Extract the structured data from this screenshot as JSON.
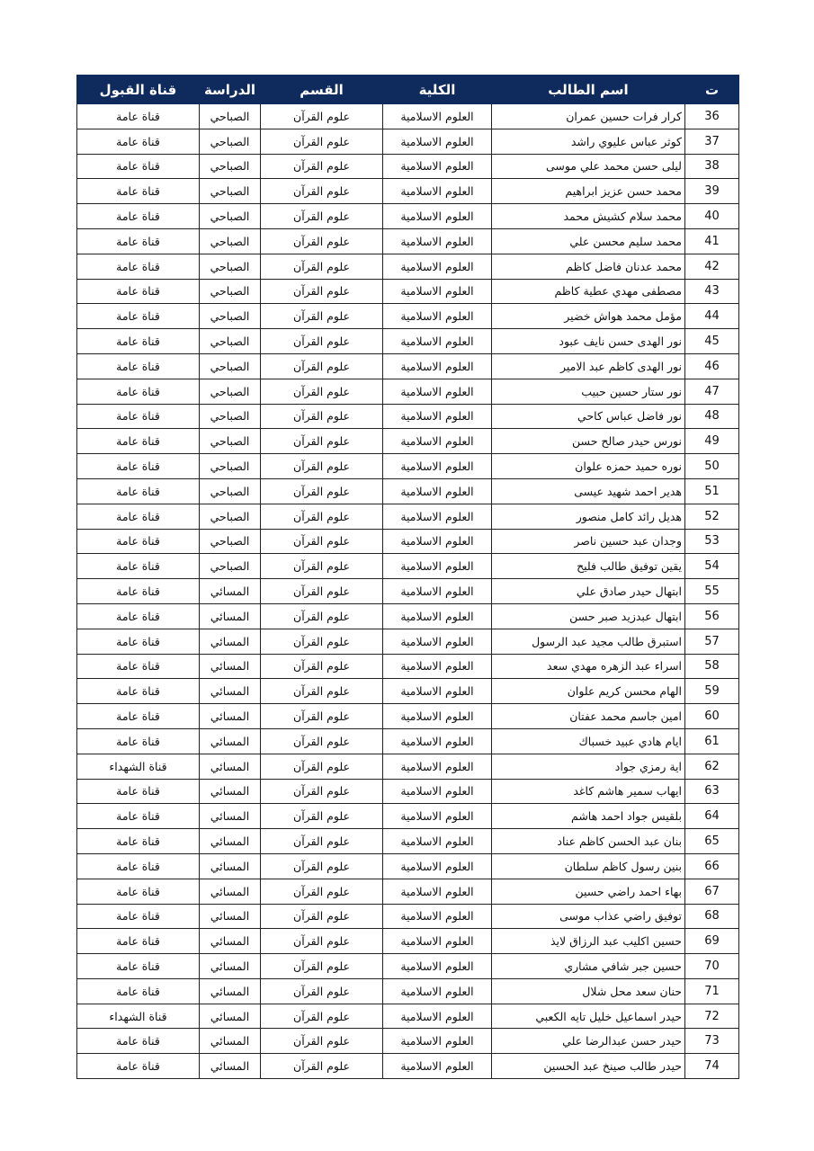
{
  "table": {
    "headers": {
      "num": "ت",
      "name": "اسم الطالب",
      "college": "الكلية",
      "dept": "القسم",
      "study": "الدراسة",
      "channel": "قناة القبول"
    },
    "rows": [
      {
        "num": "36",
        "name": "كرار فرات حسين عمران",
        "college": "العلوم الاسلامية",
        "dept": "علوم القرآن",
        "study": "الصباحي",
        "channel": "قناة عامة"
      },
      {
        "num": "37",
        "name": "كوثر عباس عليوي راشد",
        "college": "العلوم الاسلامية",
        "dept": "علوم القرآن",
        "study": "الصباحي",
        "channel": "قناة عامة"
      },
      {
        "num": "38",
        "name": "ليلى حسن محمد علي موسى",
        "college": "العلوم الاسلامية",
        "dept": "علوم القرآن",
        "study": "الصباحي",
        "channel": "قناة عامة"
      },
      {
        "num": "39",
        "name": "محمد حسن عزيز ابراهيم",
        "college": "العلوم الاسلامية",
        "dept": "علوم القرآن",
        "study": "الصباحي",
        "channel": "قناة عامة"
      },
      {
        "num": "40",
        "name": "محمد سلام كشيش محمد",
        "college": "العلوم الاسلامية",
        "dept": "علوم القرآن",
        "study": "الصباحي",
        "channel": "قناة عامة"
      },
      {
        "num": "41",
        "name": "محمد سليم محسن علي",
        "college": "العلوم الاسلامية",
        "dept": "علوم القرآن",
        "study": "الصباحي",
        "channel": "قناة عامة"
      },
      {
        "num": "42",
        "name": "محمد عدنان فاضل كاظم",
        "college": "العلوم الاسلامية",
        "dept": "علوم القرآن",
        "study": "الصباحي",
        "channel": "قناة عامة"
      },
      {
        "num": "43",
        "name": "مصطفى مهدي عطية كاظم",
        "college": "العلوم الاسلامية",
        "dept": "علوم القرآن",
        "study": "الصباحي",
        "channel": "قناة عامة"
      },
      {
        "num": "44",
        "name": "مؤمل محمد هواش خضير",
        "college": "العلوم الاسلامية",
        "dept": "علوم القرآن",
        "study": "الصباحي",
        "channel": "قناة عامة"
      },
      {
        "num": "45",
        "name": "نور الهدى حسن نايف عبود",
        "college": "العلوم الاسلامية",
        "dept": "علوم القرآن",
        "study": "الصباحي",
        "channel": "قناة عامة"
      },
      {
        "num": "46",
        "name": "نور الهدى كاظم عبد الامير",
        "college": "العلوم الاسلامية",
        "dept": "علوم القرآن",
        "study": "الصباحي",
        "channel": "قناة عامة"
      },
      {
        "num": "47",
        "name": "نور ستار حسين حبيب",
        "college": "العلوم الاسلامية",
        "dept": "علوم القرآن",
        "study": "الصباحي",
        "channel": "قناة عامة"
      },
      {
        "num": "48",
        "name": "نور فاضل عباس كاحي",
        "college": "العلوم الاسلامية",
        "dept": "علوم القرآن",
        "study": "الصباحي",
        "channel": "قناة عامة"
      },
      {
        "num": "49",
        "name": "نورس حيدر صالح حسن",
        "college": "العلوم الاسلامية",
        "dept": "علوم القرآن",
        "study": "الصباحي",
        "channel": "قناة عامة"
      },
      {
        "num": "50",
        "name": "نوره حميد حمزه علوان",
        "college": "العلوم الاسلامية",
        "dept": "علوم القرآن",
        "study": "الصباحي",
        "channel": "قناة عامة"
      },
      {
        "num": "51",
        "name": "هدير احمد شهيد عيسى",
        "college": "العلوم الاسلامية",
        "dept": "علوم القرآن",
        "study": "الصباحي",
        "channel": "قناة عامة"
      },
      {
        "num": "52",
        "name": "هديل رائد كامل منصور",
        "college": "العلوم الاسلامية",
        "dept": "علوم القرآن",
        "study": "الصباحي",
        "channel": "قناة عامة"
      },
      {
        "num": "53",
        "name": "وجدان عبد حسين ناصر",
        "college": "العلوم الاسلامية",
        "dept": "علوم القرآن",
        "study": "الصباحي",
        "channel": "قناة عامة"
      },
      {
        "num": "54",
        "name": "يقين توفيق طالب فليح",
        "college": "العلوم الاسلامية",
        "dept": "علوم القرآن",
        "study": "الصباحي",
        "channel": "قناة عامة"
      },
      {
        "num": "55",
        "name": "ابتهال حيدر صادق علي",
        "college": "العلوم الاسلامية",
        "dept": "علوم القرآن",
        "study": "المسائي",
        "channel": "قناة عامة"
      },
      {
        "num": "56",
        "name": "ابتهال عبدزيد صبر حسن",
        "college": "العلوم الاسلامية",
        "dept": "علوم القرآن",
        "study": "المسائي",
        "channel": "قناة عامة"
      },
      {
        "num": "57",
        "name": "استبرق طالب مجيد عبد الرسول",
        "college": "العلوم الاسلامية",
        "dept": "علوم القرآن",
        "study": "المسائي",
        "channel": "قناة عامة"
      },
      {
        "num": "58",
        "name": "اسراء عبد الزهره مهدي سعد",
        "college": "العلوم الاسلامية",
        "dept": "علوم القرآن",
        "study": "المسائي",
        "channel": "قناة عامة"
      },
      {
        "num": "59",
        "name": "الهام محسن كريم علوان",
        "college": "العلوم الاسلامية",
        "dept": "علوم القرآن",
        "study": "المسائي",
        "channel": "قناة عامة"
      },
      {
        "num": "60",
        "name": "امين جاسم محمد عفتان",
        "college": "العلوم الاسلامية",
        "dept": "علوم القرآن",
        "study": "المسائي",
        "channel": "قناة عامة"
      },
      {
        "num": "61",
        "name": "ايام هادي عبيد خسباك",
        "college": "العلوم الاسلامية",
        "dept": "علوم القرآن",
        "study": "المسائي",
        "channel": "قناة عامة"
      },
      {
        "num": "62",
        "name": "اية رمزي جواد",
        "college": "العلوم الاسلامية",
        "dept": "علوم القرآن",
        "study": "المسائي",
        "channel": "قناة الشهداء"
      },
      {
        "num": "63",
        "name": "ايهاب سمير هاشم كاغد",
        "college": "العلوم الاسلامية",
        "dept": "علوم القرآن",
        "study": "المسائي",
        "channel": "قناة عامة"
      },
      {
        "num": "64",
        "name": "بلقيس جواد احمد هاشم",
        "college": "العلوم الاسلامية",
        "dept": "علوم القرآن",
        "study": "المسائي",
        "channel": "قناة عامة"
      },
      {
        "num": "65",
        "name": "بنان عبد الحسن كاظم عناد",
        "college": "العلوم الاسلامية",
        "dept": "علوم القرآن",
        "study": "المسائي",
        "channel": "قناة عامة"
      },
      {
        "num": "66",
        "name": "بنين رسول كاظم سلطان",
        "college": "العلوم الاسلامية",
        "dept": "علوم القرآن",
        "study": "المسائي",
        "channel": "قناة عامة"
      },
      {
        "num": "67",
        "name": "بهاء احمد راضي حسين",
        "college": "العلوم الاسلامية",
        "dept": "علوم القرآن",
        "study": "المسائي",
        "channel": "قناة عامة"
      },
      {
        "num": "68",
        "name": "توفيق راضي عذاب موسى",
        "college": "العلوم الاسلامية",
        "dept": "علوم القرآن",
        "study": "المسائي",
        "channel": "قناة عامة"
      },
      {
        "num": "69",
        "name": "حسين اكليب عبد الرزاق لايذ",
        "college": "العلوم الاسلامية",
        "dept": "علوم القرآن",
        "study": "المسائي",
        "channel": "قناة عامة"
      },
      {
        "num": "70",
        "name": "حسين جبر شافي مشاري",
        "college": "العلوم الاسلامية",
        "dept": "علوم القرآن",
        "study": "المسائي",
        "channel": "قناة عامة"
      },
      {
        "num": "71",
        "name": "حنان سعد محل شلال",
        "college": "العلوم الاسلامية",
        "dept": "علوم القرآن",
        "study": "المسائي",
        "channel": "قناة عامة"
      },
      {
        "num": "72",
        "name": "حيدر اسماعيل خليل تايه الكعبي",
        "college": "العلوم الاسلامية",
        "dept": "علوم القرآن",
        "study": "المسائي",
        "channel": "قناة الشهداء"
      },
      {
        "num": "73",
        "name": "حيدر حسن عبدالرضا علي",
        "college": "العلوم الاسلامية",
        "dept": "علوم القرآن",
        "study": "المسائي",
        "channel": "قناة عامة"
      },
      {
        "num": "74",
        "name": "حيدر طالب صينخ عبد الحسين",
        "college": "العلوم الاسلامية",
        "dept": "علوم القرآن",
        "study": "المسائي",
        "channel": "قناة عامة"
      }
    ]
  }
}
